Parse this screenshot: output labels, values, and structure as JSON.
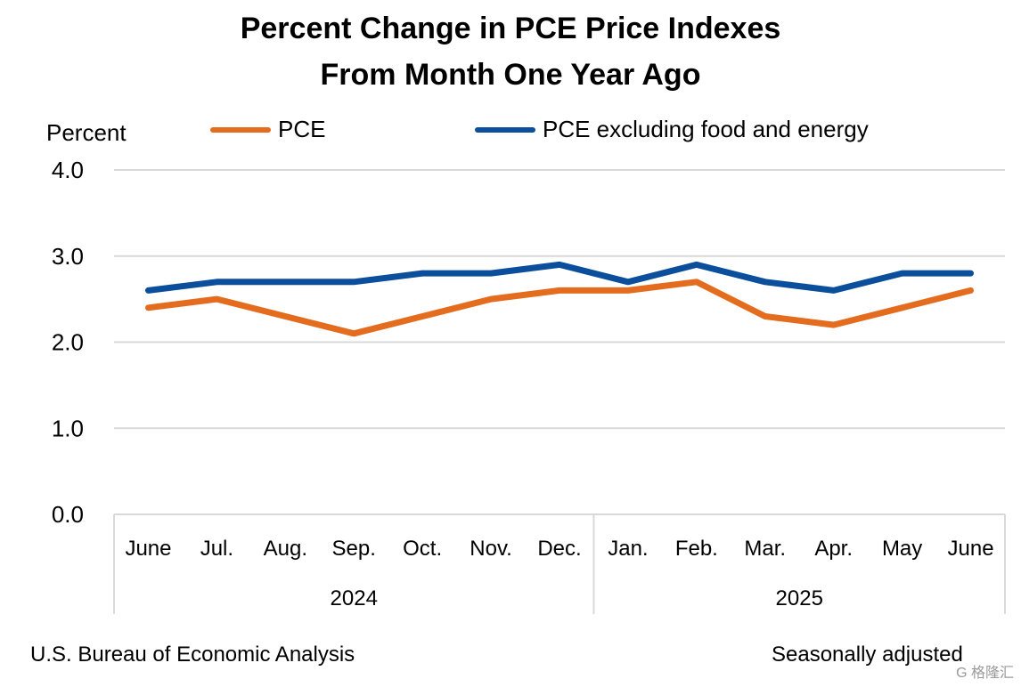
{
  "title_line1": "Percent Change in PCE Price Indexes",
  "title_line2": "From Month One Year Ago",
  "ylabel": "Percent",
  "footer_left": "U.S. Bureau of Economic Analysis",
  "footer_right": "Seasonally adjusted",
  "watermark": "G 格隆汇",
  "chart_data": {
    "type": "line",
    "title": "Percent Change in PCE Price Indexes From Month One Year Ago",
    "ylabel": "Percent",
    "ylim": [
      0.0,
      4.0
    ],
    "yticks": [
      "0.0",
      "1.0",
      "2.0",
      "3.0",
      "4.0"
    ],
    "grid": true,
    "legend_position": "top",
    "categories": [
      "June",
      "Jul.",
      "Aug.",
      "Sep.",
      "Oct.",
      "Nov.",
      "Dec.",
      "Jan.",
      "Feb.",
      "Mar.",
      "Apr.",
      "May",
      "June"
    ],
    "year_groups": [
      {
        "label": "2024",
        "start": 0,
        "end": 6
      },
      {
        "label": "2025",
        "start": 7,
        "end": 12
      }
    ],
    "series": [
      {
        "name": "PCE",
        "color": "#E46C1E",
        "values": [
          2.4,
          2.5,
          2.3,
          2.1,
          2.3,
          2.5,
          2.6,
          2.6,
          2.7,
          2.3,
          2.2,
          2.4,
          2.6
        ]
      },
      {
        "name": "PCE excluding food and energy",
        "color": "#0B4F9C",
        "values": [
          2.6,
          2.7,
          2.7,
          2.7,
          2.8,
          2.8,
          2.9,
          2.7,
          2.9,
          2.7,
          2.6,
          2.8,
          2.8
        ]
      }
    ]
  }
}
